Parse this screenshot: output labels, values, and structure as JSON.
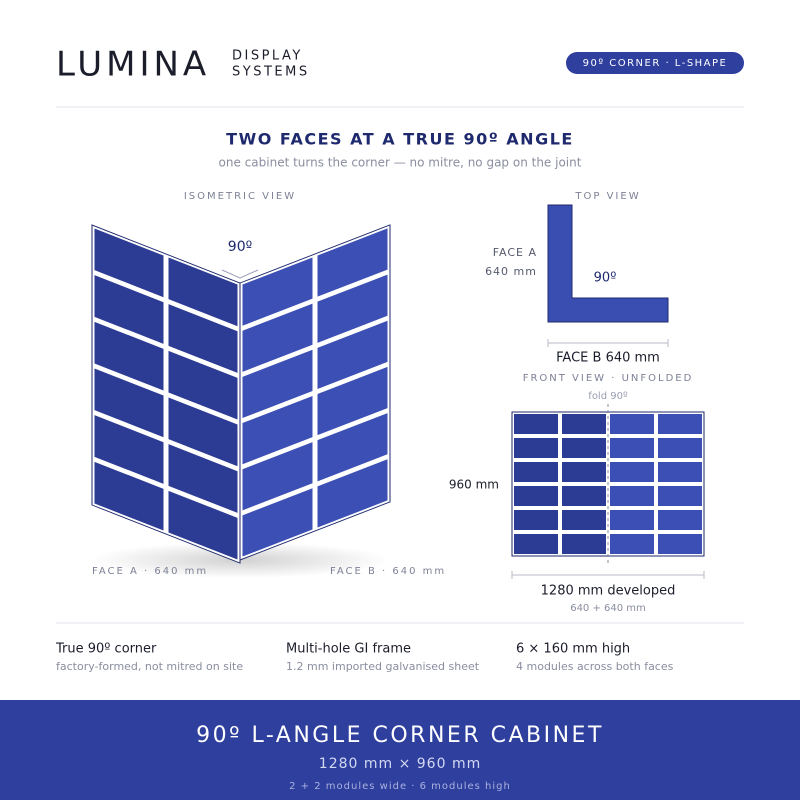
{
  "brand": {
    "name": "LUMINA",
    "line1": "DISPLAY",
    "line2": "SYSTEMS"
  },
  "badge": "90º  CORNER  ·  L-SHAPE",
  "heading": {
    "title": "TWO FACES AT A TRUE 90º ANGLE",
    "subtitle": "one cabinet turns the corner — no mitre, no gap on the joint"
  },
  "isometric": {
    "label": "ISOMETRIC VIEW",
    "angle": "90º",
    "face_a": "FACE A  ·  640 mm",
    "face_b": "FACE B  ·  640 mm"
  },
  "top_view": {
    "label": "TOP VIEW",
    "face_a": "FACE A",
    "face_a_size": "640 mm",
    "angle": "90º",
    "face_b": "FACE B  640 mm"
  },
  "front_view": {
    "label": "FRONT VIEW  ·  UNFOLDED",
    "fold": "fold  90º",
    "height": "960 mm",
    "developed": "1280 mm developed",
    "sum": "640 + 640 mm"
  },
  "features": [
    {
      "title": "True 90º corner",
      "text": "factory-formed, not mitred on site"
    },
    {
      "title": "Multi-hole GI frame",
      "text": "1.2 mm imported galvanised sheet"
    },
    {
      "title": "6 × 160 mm high",
      "text": "4 modules across both faces"
    }
  ],
  "footer": {
    "title": "90º  L-ANGLE  CORNER  CABINET",
    "size": "1280 mm  ×  960 mm",
    "modules": "2 + 2 modules wide  ·  6 modules high"
  }
}
